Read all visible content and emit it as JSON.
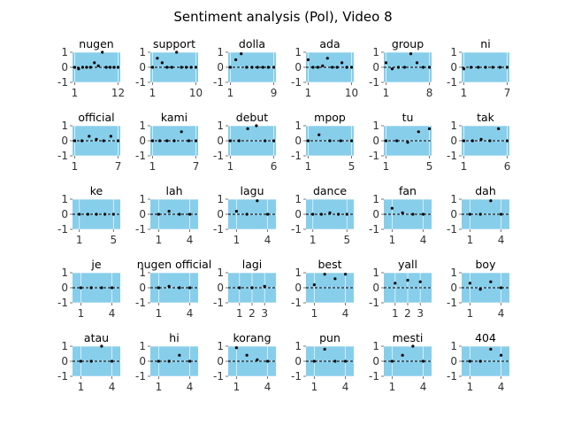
{
  "title": "Sentiment analysis (Pol), Video 8",
  "colors": {
    "panel_bg": "#87CEEB",
    "point": "#000000",
    "zero_line": "#000000",
    "grid": "#ffffff",
    "tick": "#555555"
  },
  "chart_data": {
    "type": "scatter",
    "grid": true,
    "ylim": [
      -1,
      1
    ],
    "yticks": [
      -1,
      0,
      1
    ],
    "panels": [
      {
        "title": "nugen",
        "xticks": [
          1,
          12
        ],
        "xlim": [
          0.45,
          12.55
        ],
        "x": [
          1,
          2,
          3,
          4,
          5,
          6,
          7,
          8,
          9,
          10,
          11,
          12
        ],
        "y": [
          0,
          -0.1,
          0,
          0,
          0,
          0.3,
          0.1,
          1,
          0,
          0,
          0,
          0
        ]
      },
      {
        "title": "support",
        "xticks": [
          1,
          10
        ],
        "xlim": [
          0.55,
          10.45
        ],
        "x": [
          1,
          2,
          3,
          4,
          5,
          6,
          7,
          8,
          9,
          10
        ],
        "y": [
          0,
          0.6,
          0.3,
          0,
          0,
          1,
          0,
          0,
          0,
          0
        ]
      },
      {
        "title": "dolla",
        "xticks": [
          1,
          9
        ],
        "xlim": [
          0.6,
          9.4
        ],
        "x": [
          1,
          2,
          3,
          4,
          5,
          6,
          7,
          8,
          9
        ],
        "y": [
          0,
          0.5,
          0.9,
          0,
          0,
          0,
          0,
          0,
          0
        ]
      },
      {
        "title": "ada",
        "xticks": [
          1,
          10
        ],
        "xlim": [
          0.55,
          10.45
        ],
        "x": [
          1,
          2,
          3,
          4,
          5,
          6,
          7,
          8,
          9,
          10
        ],
        "y": [
          0.5,
          0,
          0,
          0.1,
          0.6,
          0,
          0,
          0.3,
          0,
          0
        ]
      },
      {
        "title": "group",
        "xticks": [
          1,
          8
        ],
        "xlim": [
          0.65,
          8.35
        ],
        "x": [
          1,
          2,
          3,
          4,
          5,
          6,
          7,
          8
        ],
        "y": [
          0.3,
          -0.1,
          0,
          0,
          0.9,
          0.3,
          0,
          0
        ]
      },
      {
        "title": "ni",
        "xticks": [
          1,
          7
        ],
        "xlim": [
          0.7,
          7.3
        ],
        "x": [
          1,
          2,
          3,
          4,
          5,
          6,
          7
        ],
        "y": [
          -0.1,
          0,
          0,
          0,
          0,
          0,
          0
        ]
      },
      {
        "title": "official",
        "xticks": [
          1,
          7
        ],
        "xlim": [
          0.7,
          7.3
        ],
        "x": [
          1,
          2,
          3,
          4,
          5,
          6,
          7
        ],
        "y": [
          0,
          0,
          0.3,
          0.1,
          0,
          0.3,
          0
        ]
      },
      {
        "title": "kami",
        "xticks": [
          1,
          7
        ],
        "xlim": [
          0.7,
          7.3
        ],
        "x": [
          1,
          2,
          3,
          4,
          5,
          6,
          7
        ],
        "y": [
          0,
          0,
          0,
          0,
          0.6,
          0,
          0
        ]
      },
      {
        "title": "debut",
        "xticks": [
          1,
          6
        ],
        "xlim": [
          0.75,
          6.25
        ],
        "x": [
          1,
          2,
          3,
          4,
          5,
          6
        ],
        "y": [
          0,
          0,
          0.8,
          1,
          0,
          0
        ]
      },
      {
        "title": "mpop",
        "xticks": [
          1,
          5
        ],
        "xlim": [
          0.8,
          5.2
        ],
        "x": [
          1,
          2,
          3,
          4,
          5
        ],
        "y": [
          0,
          0.4,
          0,
          0,
          0
        ]
      },
      {
        "title": "tu",
        "xticks": [
          1,
          5
        ],
        "xlim": [
          0.8,
          5.2
        ],
        "x": [
          1,
          2,
          3,
          4,
          5
        ],
        "y": [
          0,
          0,
          -0.1,
          0.6,
          0.8
        ]
      },
      {
        "title": "tak",
        "xticks": [
          1,
          6
        ],
        "xlim": [
          0.75,
          6.25
        ],
        "x": [
          1,
          2,
          3,
          4,
          5,
          6
        ],
        "y": [
          0,
          0,
          0.1,
          0,
          0.8,
          0
        ]
      },
      {
        "title": "ke",
        "xticks": [
          1,
          5
        ],
        "xlim": [
          0.2,
          5.8
        ],
        "x": [
          1,
          2,
          3,
          4,
          5
        ],
        "y": [
          0,
          0,
          0,
          0,
          0
        ]
      },
      {
        "title": "lah",
        "xticks": [
          1,
          4
        ],
        "xlim": [
          0.2,
          4.8
        ],
        "x": [
          1,
          2,
          3,
          4
        ],
        "y": [
          0,
          0.2,
          0,
          0
        ]
      },
      {
        "title": "lagu",
        "xticks": [
          1,
          4
        ],
        "xlim": [
          0.2,
          4.8
        ],
        "x": [
          1,
          2,
          3,
          4
        ],
        "y": [
          0.2,
          0,
          0.9,
          0
        ]
      },
      {
        "title": "dance",
        "xticks": [
          1,
          5
        ],
        "xlim": [
          0.2,
          5.8
        ],
        "x": [
          1,
          2,
          3,
          4,
          5
        ],
        "y": [
          0,
          0,
          0.1,
          0,
          0
        ]
      },
      {
        "title": "fan",
        "xticks": [
          1,
          4
        ],
        "xlim": [
          0.2,
          4.8
        ],
        "x": [
          1,
          2,
          3,
          4
        ],
        "y": [
          0.4,
          0.1,
          0,
          0
        ]
      },
      {
        "title": "dah",
        "xticks": [
          1,
          4
        ],
        "xlim": [
          0.2,
          4.8
        ],
        "x": [
          1,
          2,
          3,
          4
        ],
        "y": [
          0,
          0,
          0.9,
          0
        ]
      },
      {
        "title": "je",
        "xticks": [
          1,
          4
        ],
        "xlim": [
          0.2,
          4.8
        ],
        "x": [
          1,
          2,
          3,
          4
        ],
        "y": [
          0,
          0,
          0,
          0
        ]
      },
      {
        "title": "nugen official",
        "xticks": [
          1,
          4
        ],
        "xlim": [
          0.2,
          4.8
        ],
        "x": [
          1,
          2,
          3,
          4
        ],
        "y": [
          0,
          0.1,
          0,
          0
        ]
      },
      {
        "title": "lagi",
        "xticks": [
          1,
          2,
          3
        ],
        "xlim": [
          0.1,
          3.9
        ],
        "x": [
          1,
          2,
          3
        ],
        "y": [
          0,
          0,
          0.1
        ]
      },
      {
        "title": "best",
        "xticks": [
          1,
          4
        ],
        "xlim": [
          0.2,
          4.8
        ],
        "x": [
          1,
          2,
          3,
          4
        ],
        "y": [
          0.2,
          0.9,
          0.6,
          0.9
        ]
      },
      {
        "title": "yall",
        "xticks": [
          1,
          2,
          3
        ],
        "xlim": [
          0.1,
          3.9
        ],
        "x": [
          1,
          2,
          3
        ],
        "y": [
          0.3,
          0.5,
          0.4
        ]
      },
      {
        "title": "boy",
        "xticks": [
          1,
          4
        ],
        "xlim": [
          0.2,
          4.8
        ],
        "x": [
          1,
          2,
          3,
          4
        ],
        "y": [
          0.3,
          -0.1,
          0.4,
          0
        ]
      },
      {
        "title": "atau",
        "xticks": [
          1,
          4
        ],
        "xlim": [
          0.2,
          4.8
        ],
        "x": [
          1,
          2,
          3,
          4
        ],
        "y": [
          0,
          0,
          1,
          0
        ]
      },
      {
        "title": "hi",
        "xticks": [
          1,
          4
        ],
        "xlim": [
          0.2,
          4.8
        ],
        "x": [
          1,
          2,
          3,
          4
        ],
        "y": [
          0,
          0,
          0.4,
          0
        ]
      },
      {
        "title": "korang",
        "xticks": [
          1,
          4
        ],
        "xlim": [
          0.2,
          4.8
        ],
        "x": [
          1,
          2,
          3,
          4
        ],
        "y": [
          0.9,
          0.4,
          0.1,
          0
        ]
      },
      {
        "title": "pun",
        "xticks": [
          1,
          4
        ],
        "xlim": [
          0.2,
          4.8
        ],
        "x": [
          1,
          2,
          3,
          4
        ],
        "y": [
          0,
          0.8,
          0,
          0
        ]
      },
      {
        "title": "mesti",
        "xticks": [
          1,
          4
        ],
        "xlim": [
          0.2,
          4.8
        ],
        "x": [
          1,
          2,
          3,
          4
        ],
        "y": [
          0,
          0.4,
          1,
          0
        ]
      },
      {
        "title": "404",
        "xticks": [
          1,
          4
        ],
        "xlim": [
          0.2,
          4.8
        ],
        "x": [
          1,
          2,
          3,
          4
        ],
        "y": [
          0,
          0,
          0.8,
          0.4
        ]
      }
    ]
  }
}
